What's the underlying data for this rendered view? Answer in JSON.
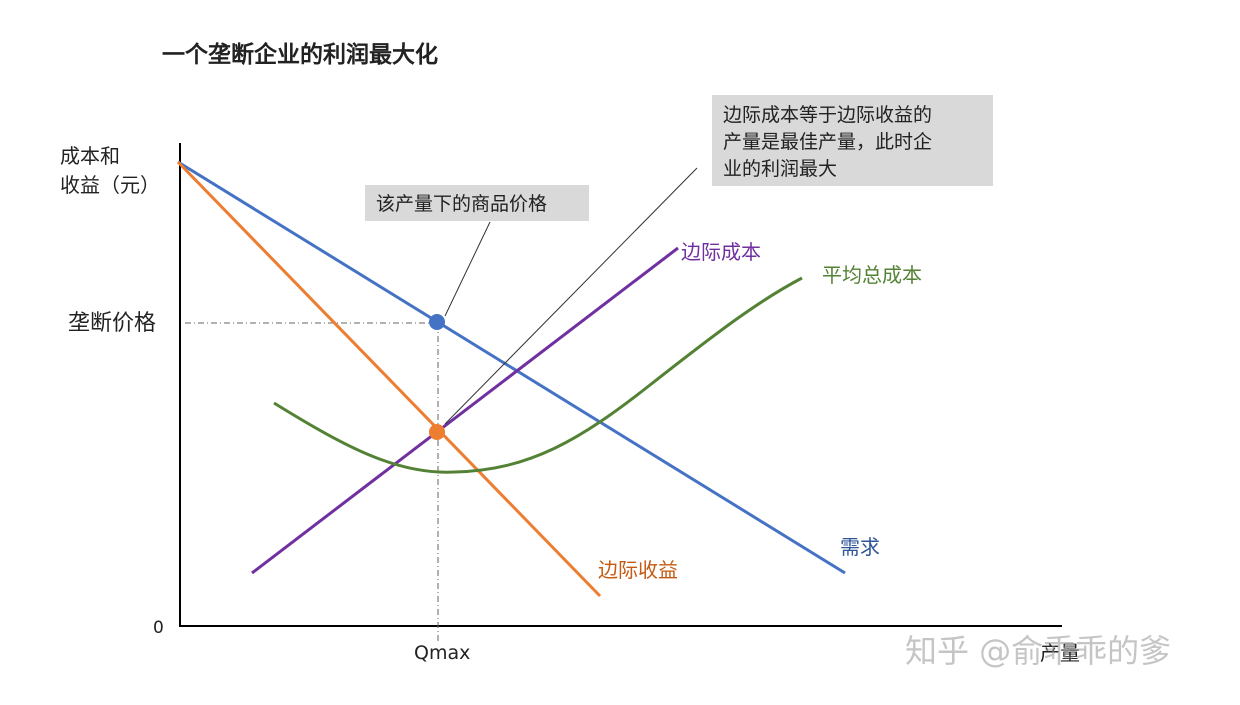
{
  "title": "一个垄断企业的利润最大化",
  "axes": {
    "y_label": [
      "成本和",
      "收益（元）"
    ],
    "x_label": "产量",
    "origin": "0",
    "price_tick": "垄断价格",
    "quantity_tick": "Qmax"
  },
  "curves": {
    "marginal_cost": "边际成本",
    "average_total_cost": "平均总成本",
    "demand": "需求",
    "marginal_revenue": "边际收益"
  },
  "callouts": {
    "price": "该产量下的商品价格",
    "optimum": [
      "边际成本等于边际收益的",
      "产量是最佳产量，此时企",
      "业的利润最大"
    ]
  },
  "watermark": "知乎 @俞乖乖的爹"
}
